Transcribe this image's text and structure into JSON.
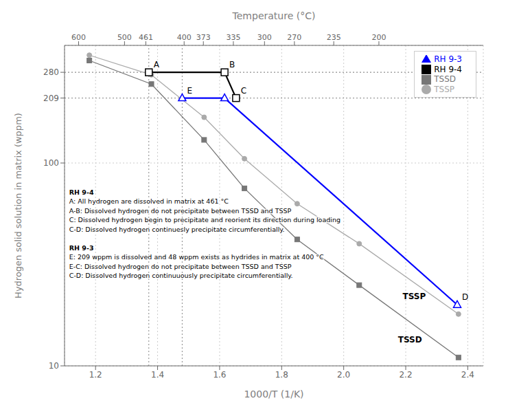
{
  "chart_data": {
    "type": "line",
    "log": "y",
    "grid": true,
    "legend": "upper right",
    "xlabel": "1000/T (1/K)",
    "ylabel": "Hydrogen solid solution in matrix (wppm)",
    "x2label": "Temperature (°C)",
    "xlim": [
      1.1,
      2.45
    ],
    "xticks": [
      1.2,
      1.4,
      1.6,
      1.8,
      {
        "value": 2,
        "label": "2.0"
      },
      2.2,
      2.4
    ],
    "ylim": [
      10,
      380
    ],
    "yticks": [
      10,
      100,
      209,
      280
    ],
    "x2lim": [
      1.1,
      2.45
    ],
    "x2ticks": [
      {
        "value": 1.1453,
        "label": "600"
      },
      {
        "value": 1.2934,
        "label": "500"
      },
      {
        "value": 1.3621,
        "label": "461"
      },
      {
        "value": 1.4856,
        "label": "400"
      },
      {
        "value": 1.5476,
        "label": "373"
      },
      {
        "value": 1.6443,
        "label": "335"
      },
      {
        "value": 1.7447,
        "label": "300"
      },
      {
        "value": 1.8411,
        "label": "270"
      },
      {
        "value": 1.9679,
        "label": "235"
      },
      {
        "value": 2.1135,
        "label": "200"
      }
    ],
    "series": [
      {
        "name": "TSSD",
        "color": "#777777",
        "marker": "square",
        "x": [
          1.18,
          1.38,
          1.55,
          1.68,
          1.85,
          2.05,
          2.37
        ],
        "values": [
          320,
          245,
          130,
          75,
          42,
          25,
          11
        ]
      },
      {
        "name": "TSSP",
        "color": "#aaaaaa",
        "marker": "circle",
        "x": [
          1.18,
          1.38,
          1.55,
          1.68,
          1.85,
          2.05,
          2.37
        ],
        "values": [
          340,
          272,
          168,
          105,
          63,
          40,
          18
        ]
      },
      {
        "name": "RH 9-3",
        "color": "blue",
        "marker": "triangle-open",
        "x": [
          1.4793,
          1.6159,
          2.366
        ],
        "values": [
          209,
          209,
          20
        ]
      },
      {
        "name": "RH 9-4",
        "color": "black",
        "marker": "square-open",
        "x": [
          1.3717,
          1.6159,
          1.653
        ],
        "values": [
          280,
          280,
          209
        ]
      }
    ],
    "hlines": [
      280,
      209
    ],
    "vlines": [
      1.3717,
      1.4793
    ],
    "point_labels": [
      {
        "text": "A",
        "x": 1.3717,
        "y": 280
      },
      {
        "text": "B",
        "x": 1.6159,
        "y": 280
      },
      {
        "text": "C",
        "x": 1.653,
        "y": 209
      },
      {
        "text": "D",
        "x": 2.366,
        "y": 20
      },
      {
        "text": "E",
        "x": 1.4793,
        "y": 209
      }
    ],
    "line_labels": [
      {
        "text": "TSSD",
        "x": 2.175,
        "y": 13.5
      },
      {
        "text": "TSSP",
        "x": 2.19,
        "y": 22
      }
    ],
    "notes": [
      {
        "x": 1.115,
        "y": 75,
        "lines": [
          [
            "RH 9-4",
            "A: All hydrogen are dissolved  in matrix at 461 °C",
            "A-B: Dissolved hydrogen do not precipitate between TSSD and TSSP",
            "C: Dissolved hydrogen begin to precipitate and reorient its direction during loading",
            "C-D: Dissolved hydrogen continuesly precipitate circumferentially."
          ],
          [
            "RH 9-3",
            "E: 209 wppm is dissolved and 48 wppm exists as hydrides in matrix at 400 °C",
            "E-C: Dissolved hydrogen do not precipitate between TSSD and TSSP",
            "C-D: Dissolved hydrogen continuuously precipitate circumferentially."
          ]
        ]
      }
    ]
  }
}
